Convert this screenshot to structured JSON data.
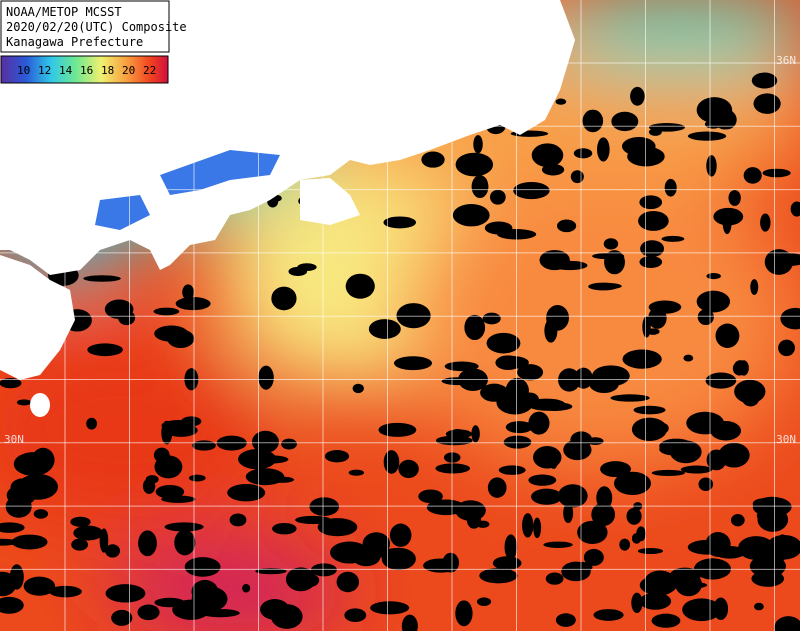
{
  "header": {
    "lines": [
      "NOAA/METOP MCSST",
      "2020/02/20(UTC) Composite",
      "Kanagawa Prefecture"
    ]
  },
  "legend": {
    "labels": [
      "10",
      "12",
      "14",
      "16",
      "18",
      "20",
      "22"
    ]
  },
  "lat_labels": [
    "36N",
    "30N",
    "30N"
  ]
}
